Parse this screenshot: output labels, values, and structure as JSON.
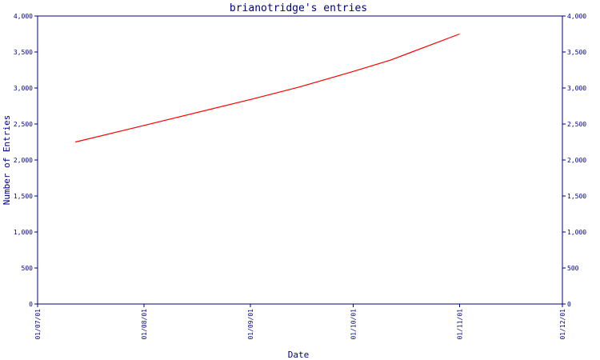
{
  "chart_data": {
    "type": "line",
    "title": "brianotridge's entries",
    "xlabel": "Date",
    "ylabel": "Number of Entries",
    "x_tick_labels": [
      "01/07/01",
      "01/08/01",
      "01/09/01",
      "01/10/01",
      "01/11/01",
      "01/12/01"
    ],
    "y_tick_labels": [
      "0",
      "500",
      "1,000",
      "1,500",
      "2,000",
      "2,500",
      "3,000",
      "3,500",
      "4,000"
    ],
    "y_ticks": [
      0,
      500,
      1000,
      1500,
      2000,
      2500,
      3000,
      3500,
      4000
    ],
    "xlim": [
      "2001-07-01",
      "2001-12-01"
    ],
    "ylim": [
      0,
      4000
    ],
    "grid": false,
    "series": [
      {
        "color": "#ff0000",
        "x": [
          "2001-07-12",
          "2001-08-01",
          "2001-09-01",
          "2001-09-15",
          "2001-10-01",
          "2001-10-12",
          "2001-11-01"
        ],
        "y": [
          2250,
          2480,
          2840,
          3010,
          3230,
          3390,
          3750
        ]
      }
    ],
    "colors": {
      "axis": "#000080",
      "text": "#000080",
      "series": "#ff0000",
      "background": "#ffffff"
    }
  }
}
